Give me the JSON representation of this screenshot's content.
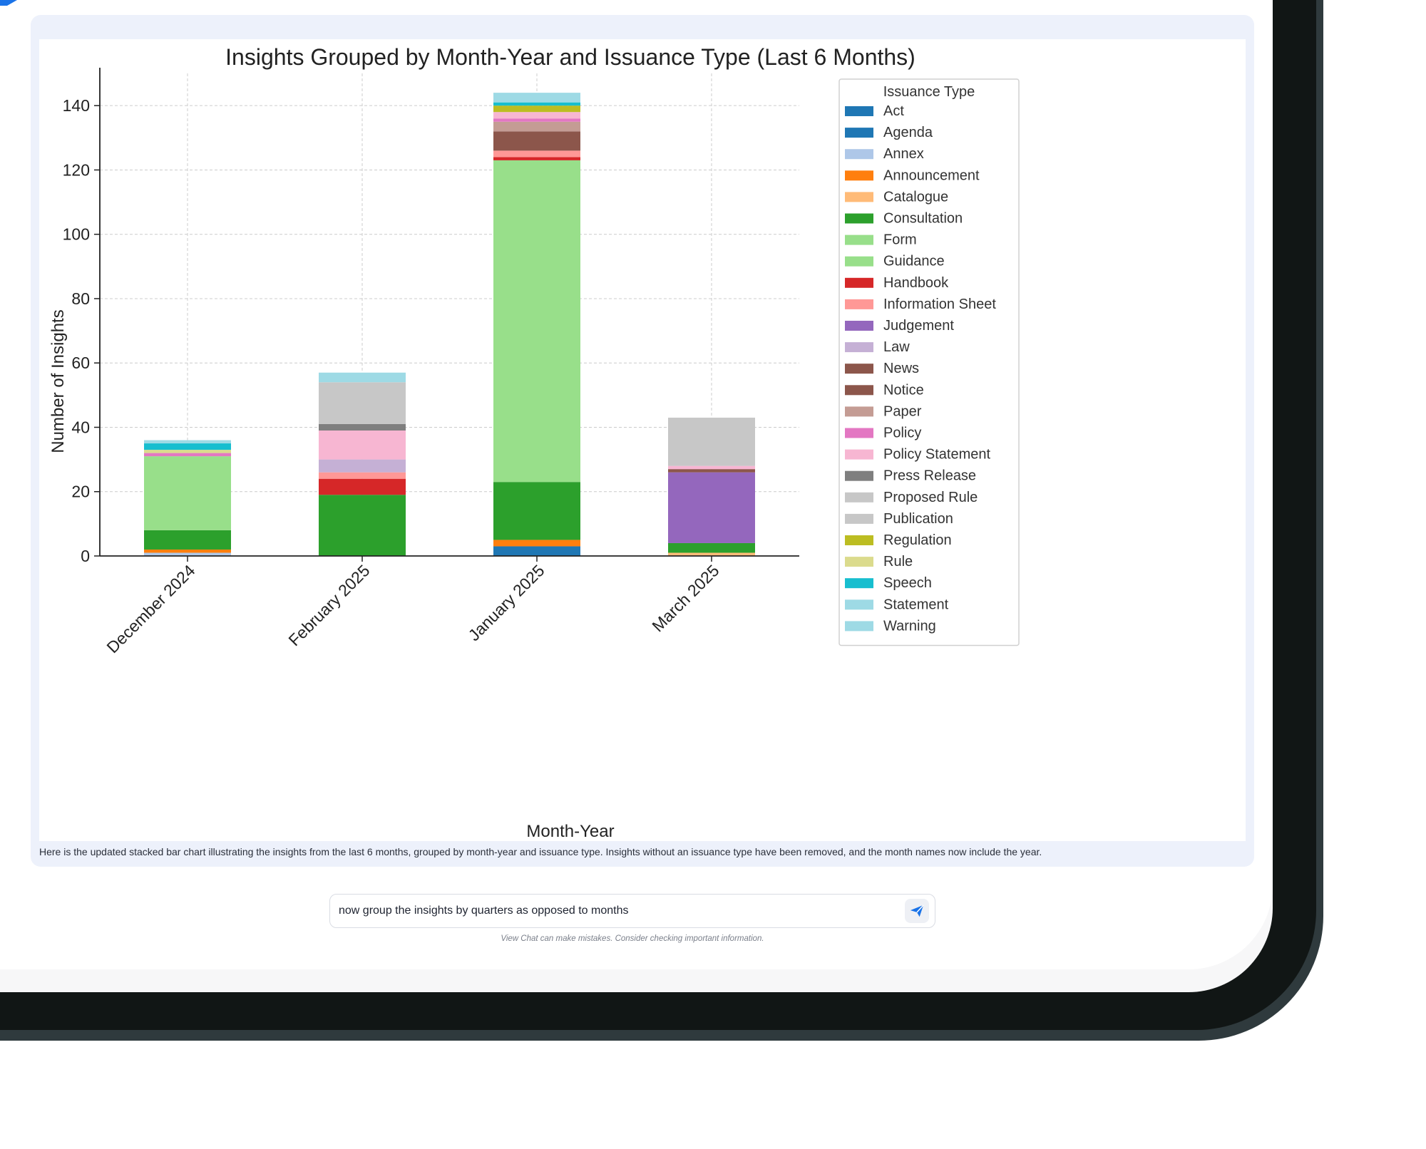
{
  "chat": {
    "caption": "Here is the updated stacked bar chart illustrating the insights from the last 6 months, grouped by month-year and issuance type. Insights without an issuance type have been removed, and the month names now include the year.",
    "prompt_value": "now group the insights by quarters as opposed to months",
    "disclaimer": "View Chat can make mistakes. Consider checking important information.",
    "send_icon": "send-icon",
    "accent_color": "#1a73e8"
  },
  "chart_data": {
    "type": "bar",
    "stacked": true,
    "title": "Insights Grouped by Month-Year and Issuance Type (Last 6 Months)",
    "xlabel": "Month-Year",
    "ylabel": "Number of Insights",
    "ylim": [
      0,
      150
    ],
    "yticks": [
      0,
      20,
      40,
      60,
      80,
      100,
      120,
      140
    ],
    "grid": true,
    "legend_title": "Issuance Type",
    "legend_position": "upper-right-outside",
    "categories": [
      "December 2024",
      "February 2025",
      "January 2025",
      "March 2025"
    ],
    "series": [
      {
        "name": "Act",
        "color": "#1f77b4",
        "values": [
          0,
          0,
          3,
          0
        ]
      },
      {
        "name": "Agenda",
        "color": "#1f77b4",
        "values": [
          0,
          0,
          0,
          0
        ]
      },
      {
        "name": "Annex",
        "color": "#aec7e8",
        "values": [
          1,
          0,
          0,
          0
        ]
      },
      {
        "name": "Announcement",
        "color": "#ff7f0e",
        "values": [
          1,
          0,
          2,
          0
        ]
      },
      {
        "name": "Catalogue",
        "color": "#ffbb78",
        "values": [
          0,
          0,
          0,
          1
        ]
      },
      {
        "name": "Consultation",
        "color": "#2ca02c",
        "values": [
          6,
          19,
          18,
          3
        ]
      },
      {
        "name": "Form",
        "color": "#98df8a",
        "values": [
          0,
          0,
          0,
          0
        ]
      },
      {
        "name": "Guidance",
        "color": "#98df8a",
        "values": [
          23,
          0,
          100,
          0
        ]
      },
      {
        "name": "Handbook",
        "color": "#d62728",
        "values": [
          0,
          5,
          1,
          0
        ]
      },
      {
        "name": "Information Sheet",
        "color": "#ff9896",
        "values": [
          0,
          2,
          2,
          0
        ]
      },
      {
        "name": "Judgement",
        "color": "#9467bd",
        "values": [
          0,
          0,
          0,
          22
        ]
      },
      {
        "name": "Law",
        "color": "#c5b0d5",
        "values": [
          0,
          4,
          0,
          0
        ]
      },
      {
        "name": "News",
        "color": "#8c564b",
        "values": [
          0,
          0,
          0,
          0
        ]
      },
      {
        "name": "Notice",
        "color": "#8c564b",
        "values": [
          0,
          0,
          6,
          1
        ]
      },
      {
        "name": "Paper",
        "color": "#c49c94",
        "values": [
          0,
          0,
          3,
          0
        ]
      },
      {
        "name": "Policy",
        "color": "#e377c2",
        "values": [
          1,
          0,
          1,
          0
        ]
      },
      {
        "name": "Policy Statement",
        "color": "#f7b6d2",
        "values": [
          0,
          9,
          2,
          1
        ]
      },
      {
        "name": "Press Release",
        "color": "#7f7f7f",
        "values": [
          0,
          2,
          0,
          0
        ]
      },
      {
        "name": "Proposed Rule",
        "color": "#c7c7c7",
        "values": [
          0,
          13,
          0,
          15
        ]
      },
      {
        "name": "Publication",
        "color": "#c7c7c7",
        "values": [
          0,
          0,
          0,
          0
        ]
      },
      {
        "name": "Regulation",
        "color": "#bcbd22",
        "values": [
          0,
          0,
          2,
          0
        ]
      },
      {
        "name": "Rule",
        "color": "#dbdb8d",
        "values": [
          1,
          0,
          0,
          0
        ]
      },
      {
        "name": "Speech",
        "color": "#17becf",
        "values": [
          2,
          0,
          1,
          0
        ]
      },
      {
        "name": "Statement",
        "color": "#9edae5",
        "values": [
          0,
          3,
          0,
          0
        ]
      },
      {
        "name": "Warning",
        "color": "#9edae5",
        "values": [
          1,
          0,
          3,
          0
        ]
      }
    ]
  }
}
